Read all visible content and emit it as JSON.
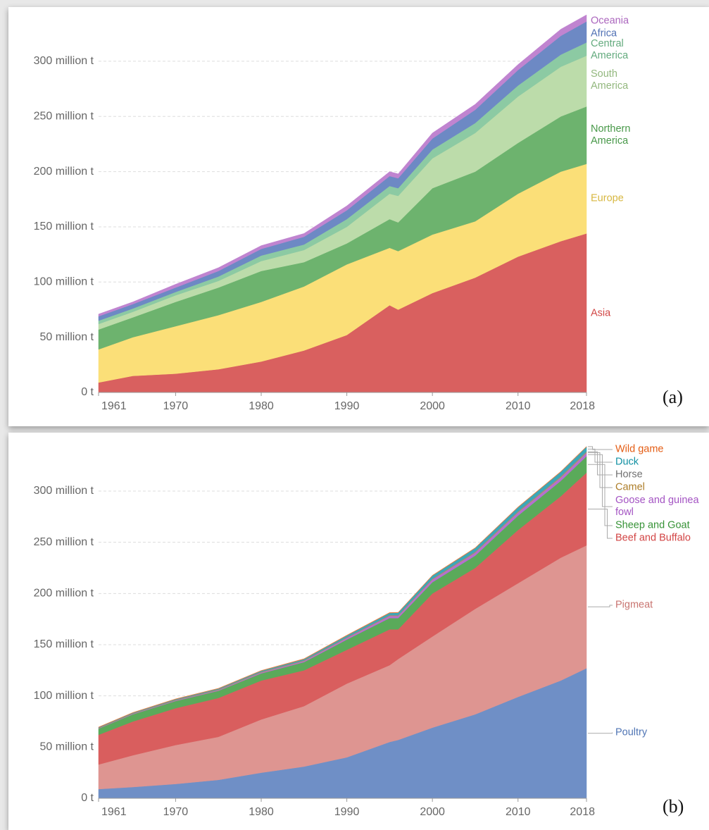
{
  "chart_data": [
    {
      "type": "area",
      "stacked": true,
      "panel_label": "(a)",
      "x": [
        1961,
        1965,
        1970,
        1975,
        1980,
        1985,
        1990,
        1995,
        1996,
        2000,
        2005,
        2010,
        2015,
        2018
      ],
      "xlim": [
        1961,
        2018
      ],
      "xticks": [
        1961,
        1970,
        1980,
        1990,
        2000,
        2010,
        2018
      ],
      "ylim": [
        0,
        340
      ],
      "yticks": [
        {
          "value": 0,
          "label": "0 t"
        },
        {
          "value": 50,
          "label": "50 million t"
        },
        {
          "value": 100,
          "label": "100 million t"
        },
        {
          "value": 150,
          "label": "150 million t"
        },
        {
          "value": 200,
          "label": "200 million t"
        },
        {
          "value": 250,
          "label": "250 million t"
        },
        {
          "value": 300,
          "label": "300 million t"
        }
      ],
      "grid": true,
      "series": [
        {
          "name": "Asia",
          "color": "#d9605f",
          "values": [
            9,
            15,
            17,
            21,
            28,
            38,
            52,
            79,
            75,
            90,
            104,
            123,
            137,
            144
          ]
        },
        {
          "name": "Europe",
          "color": "#fbdf78",
          "values": [
            30,
            35,
            43,
            49,
            54,
            58,
            64,
            52,
            53,
            53,
            51,
            57,
            63,
            63
          ]
        },
        {
          "name": "Northern America",
          "color": "#6db36e",
          "values": [
            18,
            18,
            22,
            25,
            28,
            22,
            19,
            26,
            26,
            42,
            45,
            46,
            50,
            52
          ]
        },
        {
          "name": "South America",
          "color": "#bcdcaa",
          "values": [
            5,
            5,
            6,
            6,
            9,
            11,
            15,
            23,
            24,
            27,
            35,
            42,
            45,
            46
          ]
        },
        {
          "name": "Central America",
          "color": "#8ccaa3",
          "values": [
            3,
            3,
            3,
            4,
            5,
            5,
            7,
            7,
            7,
            8,
            9,
            10,
            11,
            12
          ]
        },
        {
          "name": "Africa",
          "color": "#6d89c4",
          "values": [
            4,
            4,
            4,
            5,
            6,
            7,
            8,
            9,
            9,
            10,
            12,
            14,
            17,
            19
          ]
        },
        {
          "name": "Oceania",
          "color": "#c084d0",
          "values": [
            2,
            2,
            3,
            3,
            3,
            3,
            4,
            4,
            4,
            5,
            5,
            5,
            6,
            6
          ]
        }
      ]
    },
    {
      "type": "area",
      "stacked": true,
      "panel_label": "(b)",
      "x": [
        1961,
        1965,
        1970,
        1975,
        1980,
        1985,
        1990,
        1995,
        1996,
        2000,
        2005,
        2010,
        2015,
        2018
      ],
      "xlim": [
        1961,
        2018
      ],
      "xticks": [
        1961,
        1970,
        1980,
        1990,
        2000,
        2010,
        2018
      ],
      "ylim": [
        0,
        340
      ],
      "yticks": [
        {
          "value": 0,
          "label": "0 t"
        },
        {
          "value": 50,
          "label": "50 million t"
        },
        {
          "value": 100,
          "label": "100 million t"
        },
        {
          "value": 150,
          "label": "150 million t"
        },
        {
          "value": 200,
          "label": "200 million t"
        },
        {
          "value": 250,
          "label": "250 million t"
        },
        {
          "value": 300,
          "label": "300 million t"
        }
      ],
      "grid": true,
      "series": [
        {
          "name": "Poultry",
          "color": "#6f8fc6",
          "values": [
            9,
            11,
            14,
            18,
            25,
            31,
            40,
            55,
            57,
            69,
            82,
            99,
            115,
            127
          ]
        },
        {
          "name": "Pigmeat",
          "color": "#de9591",
          "values": [
            24,
            31,
            38,
            42,
            52,
            59,
            72,
            75,
            79,
            89,
            103,
            111,
            120,
            120
          ]
        },
        {
          "name": "Beef and Buffalo",
          "color": "#d95e5e",
          "values": [
            29,
            33,
            36,
            38,
            38,
            35,
            33,
            35,
            29,
            42,
            40,
            52,
            60,
            71
          ]
        },
        {
          "name": "Sheep and Goat",
          "color": "#5aaa5a",
          "values": [
            6,
            7,
            7,
            7,
            7,
            8,
            10,
            11,
            11,
            11,
            12,
            14,
            15,
            16
          ]
        },
        {
          "name": "Goose and guinea fowl",
          "color": "#b56fd0",
          "values": [
            0.3,
            0.4,
            0.5,
            0.6,
            0.8,
            1,
            1.5,
            2,
            2,
            2.5,
            2.8,
            3,
            3.2,
            3.3
          ]
        },
        {
          "name": "Camel",
          "color": "#c49a50",
          "values": [
            0.2,
            0.2,
            0.2,
            0.3,
            0.3,
            0.3,
            0.3,
            0.3,
            0.3,
            0.4,
            0.4,
            0.5,
            0.6,
            0.6
          ]
        },
        {
          "name": "Horse",
          "color": "#8a8a8a",
          "values": [
            0.5,
            0.5,
            0.6,
            0.6,
            0.6,
            0.6,
            0.6,
            0.7,
            0.7,
            0.7,
            0.8,
            0.8,
            0.8,
            0.9
          ]
        },
        {
          "name": "Duck",
          "color": "#3aa8b8",
          "values": [
            0.3,
            0.4,
            0.5,
            0.6,
            0.8,
            1,
            1.5,
            2,
            2.2,
            2.8,
            3.3,
            3.8,
            4.2,
            4.4
          ]
        },
        {
          "name": "Wild game",
          "color": "#ef7a3a",
          "values": [
            0.3,
            0.3,
            0.3,
            0.3,
            0.3,
            0.4,
            0.4,
            0.4,
            0.4,
            0.4,
            0.4,
            0.4,
            0.4,
            0.4
          ]
        }
      ]
    }
  ]
}
